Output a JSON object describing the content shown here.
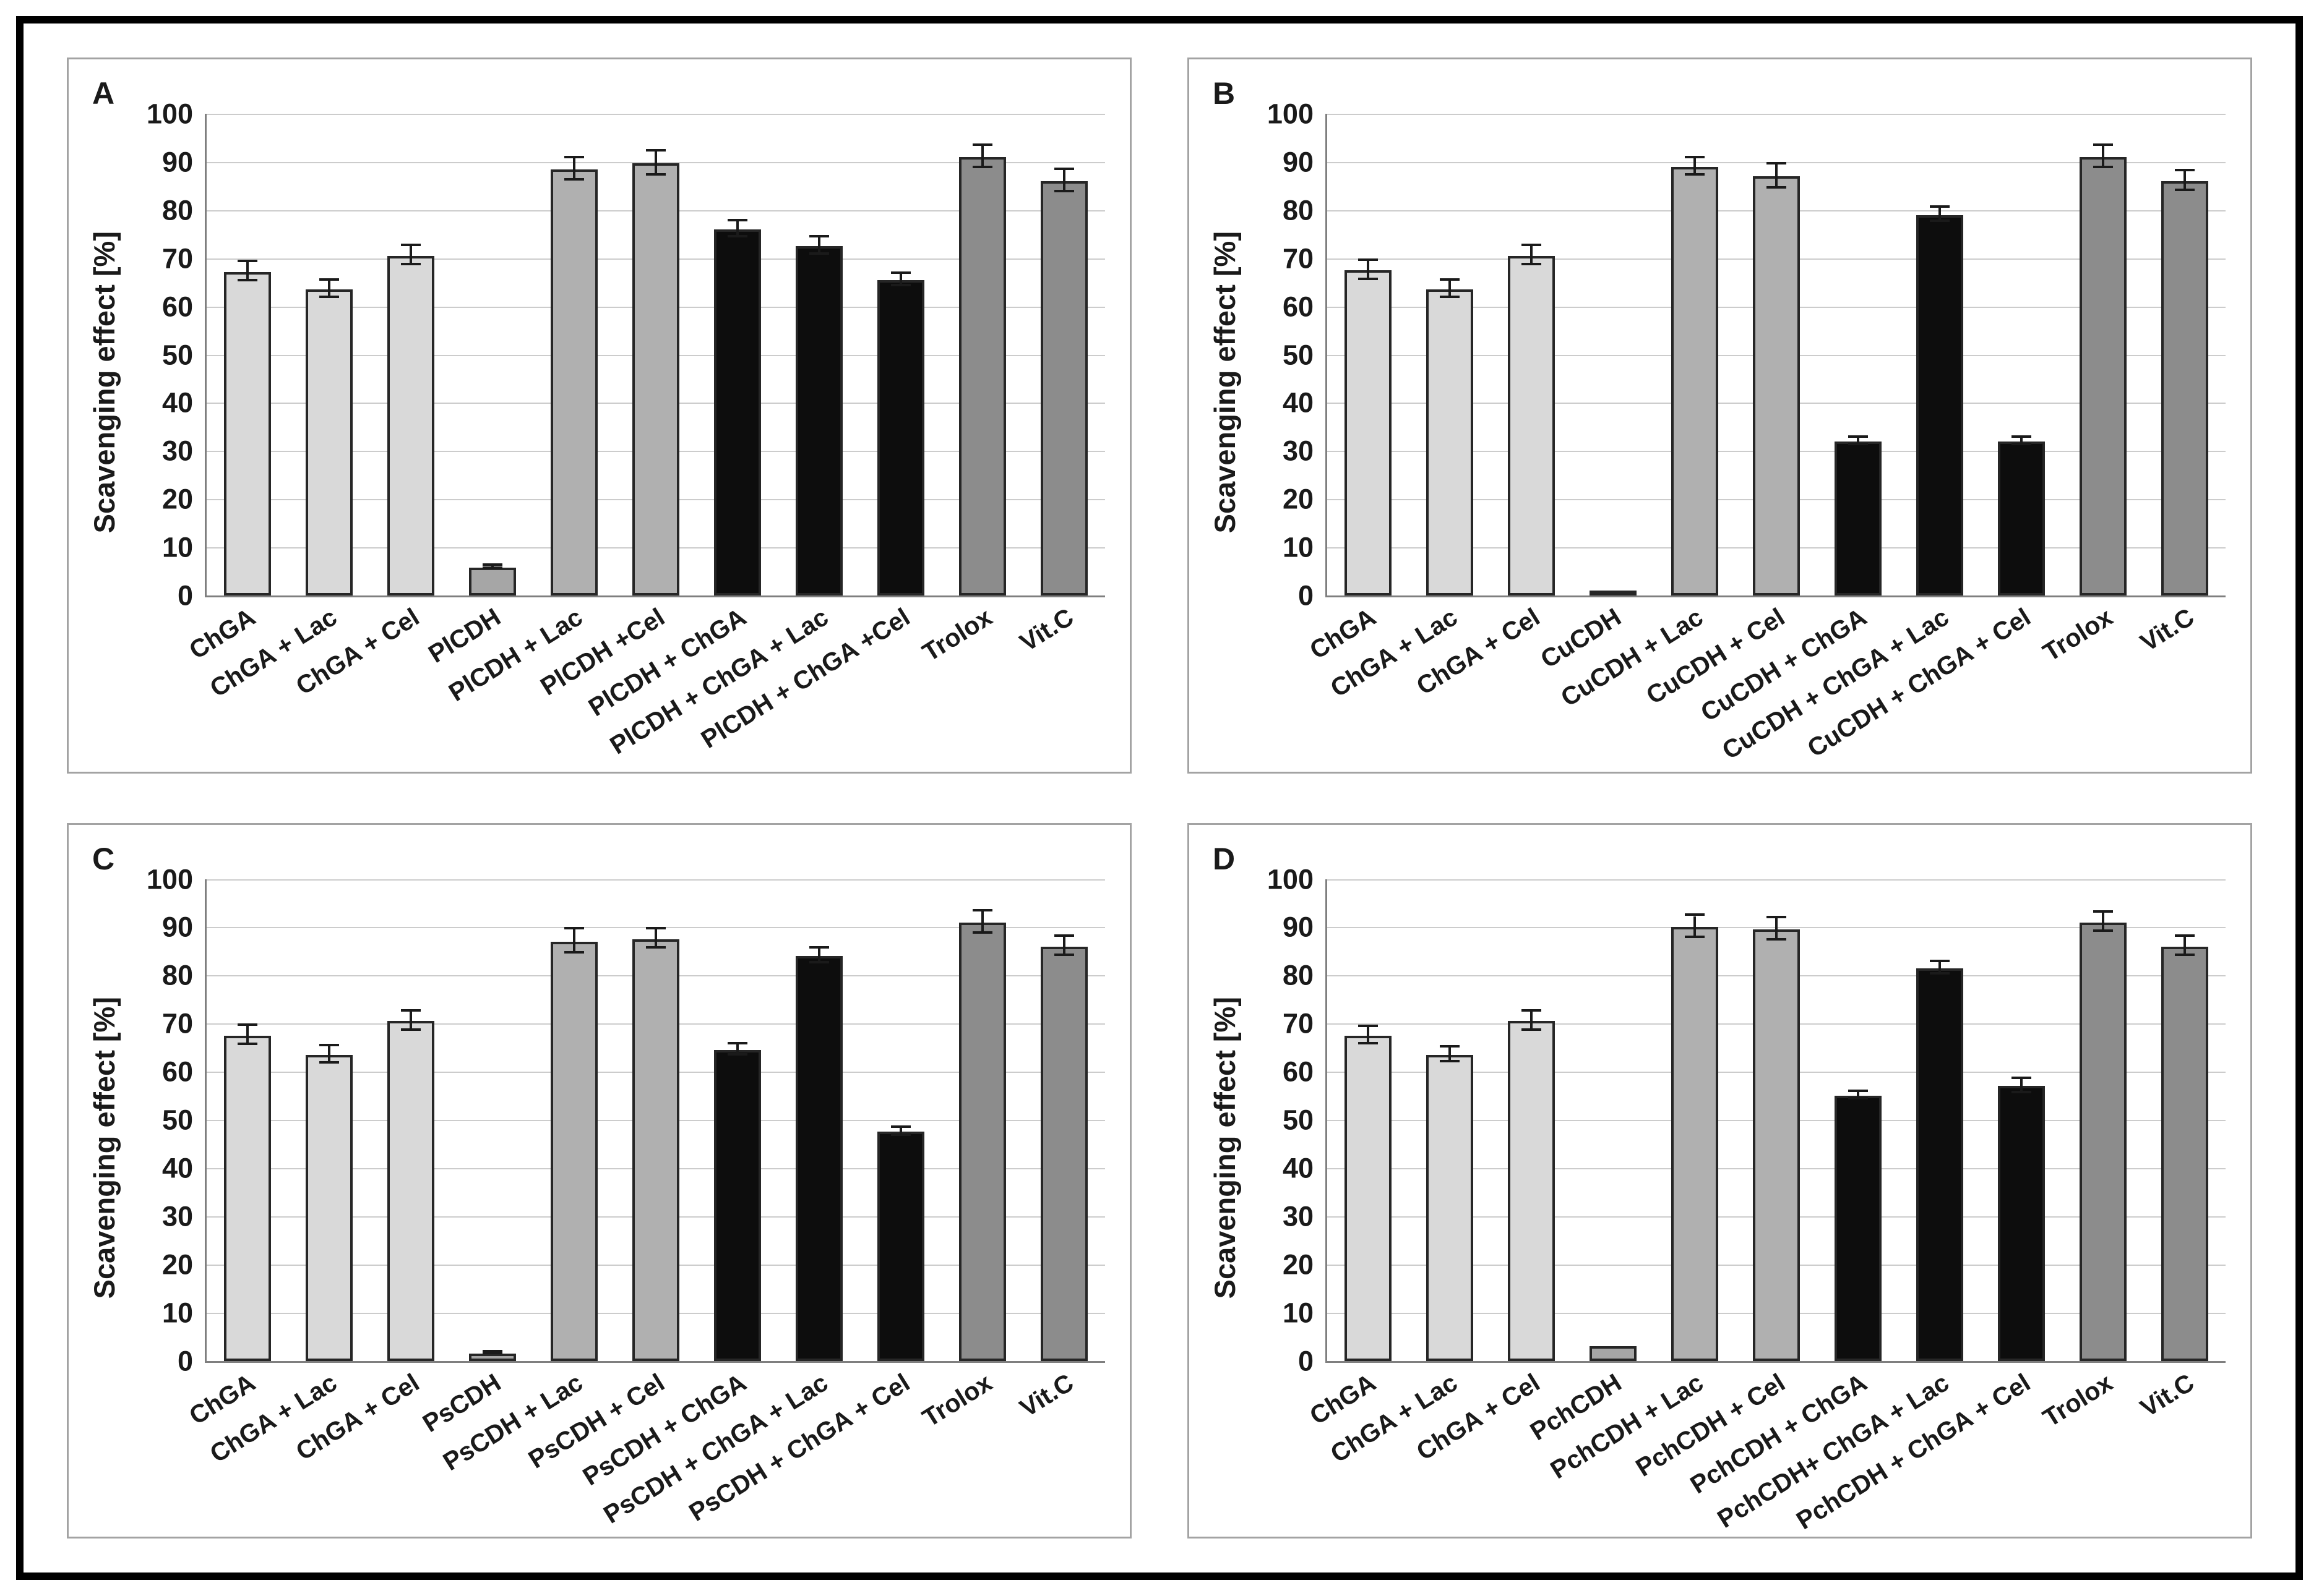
{
  "figure": {
    "ylabel": "Scavenging effect [%]",
    "axis_color": "#7f7f7f",
    "gridline_color": "#cccccc",
    "frame_border_color": "#000000",
    "panel_border_color": "#a3a3a3",
    "bar_border_color": "#262626",
    "bar_styles": {
      "light": "#d9d9d9",
      "cdh": "#a6a6a6",
      "mid": "#b0b0b0",
      "black": "#0d0d0d",
      "ref": "#8c8c8c"
    }
  },
  "chart_data": [
    {
      "panel_letter": "A",
      "type": "bar",
      "title": "",
      "xlabel": "",
      "ylabel": "Scavenging effect [%]",
      "ylim": [
        0,
        100
      ],
      "ytick_step": 10,
      "grid": true,
      "legend": "none",
      "categories": [
        "ChGA",
        "ChGA + Lac",
        "ChGA + Cel",
        "PlCDH",
        "PlCDH + Lac",
        "PlCDH +Cel",
        "PlCDH + ChGA",
        "PlCDH + ChGA + Lac",
        "PlCDH + ChGA +Cel",
        "Trolox",
        "Vit.C"
      ],
      "values": [
        67.2,
        63.5,
        70.5,
        5.8,
        88.5,
        89.7,
        76.0,
        72.5,
        65.5,
        91.0,
        86.0
      ],
      "errors": [
        2.0,
        1.8,
        2.0,
        0.3,
        2.3,
        2.5,
        1.7,
        1.8,
        1.3,
        2.3,
        2.3
      ],
      "color_roles": [
        "light",
        "light",
        "light",
        "cdh",
        "mid",
        "mid",
        "black",
        "black",
        "black",
        "ref",
        "ref"
      ]
    },
    {
      "panel_letter": "B",
      "type": "bar",
      "title": "",
      "xlabel": "",
      "ylabel": "Scavenging effect [%]",
      "ylim": [
        0,
        100
      ],
      "ytick_step": 10,
      "grid": true,
      "legend": "none",
      "categories": [
        "ChGA",
        "ChGA + Lac",
        "ChGA + Cel",
        "CuCDH",
        "CuCDH + Lac",
        "CuCDH + Cel",
        "CuCDH + ChGA",
        "CuCDH + ChGA + Lac",
        "CuCDH + ChGA + Cel",
        "Trolox",
        "Vit.C"
      ],
      "values": [
        67.5,
        63.5,
        70.5,
        0.8,
        89.0,
        87.0,
        32.0,
        79.0,
        32.0,
        91.0,
        86.0
      ],
      "errors": [
        2.0,
        1.8,
        2.0,
        0.0,
        1.8,
        2.5,
        0.8,
        1.5,
        0.8,
        2.3,
        2.0
      ],
      "color_roles": [
        "light",
        "light",
        "light",
        "cdh",
        "mid",
        "mid",
        "black",
        "black",
        "black",
        "ref",
        "ref"
      ]
    },
    {
      "panel_letter": "C",
      "type": "bar",
      "title": "",
      "xlabel": "",
      "ylabel": "Scavenging effect [%]",
      "ylim": [
        0,
        100
      ],
      "ytick_step": 10,
      "grid": true,
      "legend": "none",
      "categories": [
        "ChGA",
        "ChGA + Lac",
        "ChGA + Cel",
        "PsCDH",
        "PsCDH + Lac",
        "PsCDH + Cel",
        "PsCDH + ChGA",
        "PsCDH + ChGA + Lac",
        "PsCDH + ChGA + Cel",
        "Trolox",
        "Vit.C"
      ],
      "values": [
        67.5,
        63.5,
        70.5,
        1.5,
        87.0,
        87.5,
        64.5,
        84.0,
        47.5,
        91.0,
        86.0
      ],
      "errors": [
        2.0,
        1.8,
        2.0,
        0.2,
        2.5,
        2.0,
        1.2,
        1.5,
        0.8,
        2.3,
        2.0
      ],
      "color_roles": [
        "light",
        "light",
        "light",
        "cdh",
        "mid",
        "mid",
        "black",
        "black",
        "black",
        "ref",
        "ref"
      ]
    },
    {
      "panel_letter": "D",
      "type": "bar",
      "title": "",
      "xlabel": "",
      "ylabel": "Scavenging effect [%]",
      "ylim": [
        0,
        100
      ],
      "ytick_step": 10,
      "grid": true,
      "legend": "none",
      "categories": [
        "ChGA",
        "ChGA + Lac",
        "ChGA + Cel",
        "PchCDH",
        "PchCDH + Lac",
        "PchCDH + Cel",
        "PchCDH + ChGA",
        "PchCDH+ ChGA + Lac",
        "PchCDH + ChGA + Cel",
        "Trolox",
        "Vit.C"
      ],
      "values": [
        67.5,
        63.5,
        70.5,
        3.0,
        90.0,
        89.5,
        55.0,
        81.5,
        57.0,
        91.0,
        86.0
      ],
      "errors": [
        1.8,
        1.5,
        2.0,
        0.0,
        2.3,
        2.3,
        0.8,
        1.3,
        1.5,
        2.0,
        2.0
      ],
      "color_roles": [
        "light",
        "light",
        "light",
        "cdh",
        "mid",
        "mid",
        "black",
        "black",
        "black",
        "ref",
        "ref"
      ]
    }
  ]
}
